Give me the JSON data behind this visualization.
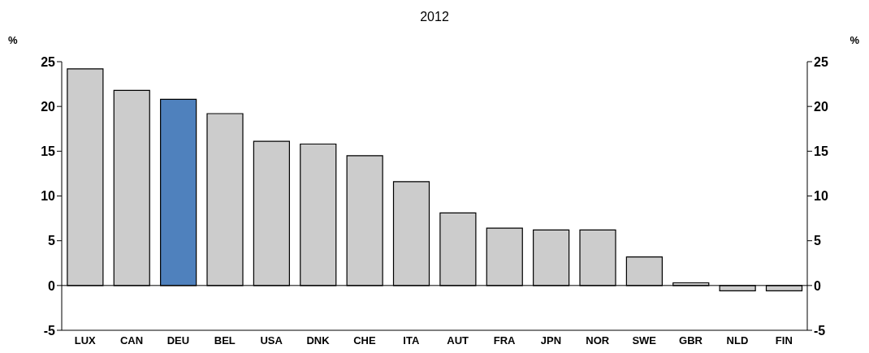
{
  "chart_data": {
    "type": "bar",
    "title": "2012",
    "ylabel": "%",
    "y2label": "%",
    "categories": [
      "LUX",
      "CAN",
      "DEU",
      "BEL",
      "USA",
      "DNK",
      "CHE",
      "ITA",
      "AUT",
      "FRA",
      "JPN",
      "NOR",
      "SWE",
      "GBR",
      "NLD",
      "FIN"
    ],
    "values": [
      24.2,
      21.8,
      20.8,
      19.2,
      16.1,
      15.8,
      14.5,
      11.6,
      8.1,
      6.4,
      6.2,
      6.2,
      3.2,
      0.3,
      -0.6,
      -0.6
    ],
    "colors": [
      "#cccccc",
      "#cccccc",
      "#4f81bd",
      "#cccccc",
      "#cccccc",
      "#cccccc",
      "#cccccc",
      "#cccccc",
      "#cccccc",
      "#cccccc",
      "#cccccc",
      "#cccccc",
      "#cccccc",
      "#cccccc",
      "#cccccc",
      "#cccccc"
    ],
    "ylim": [
      -5,
      25
    ],
    "yticks": [
      -5,
      0,
      5,
      10,
      15,
      20,
      25
    ],
    "y2lim": [
      -5,
      25
    ],
    "y2ticks": [
      -5,
      0,
      5,
      10,
      15,
      20,
      25
    ]
  }
}
